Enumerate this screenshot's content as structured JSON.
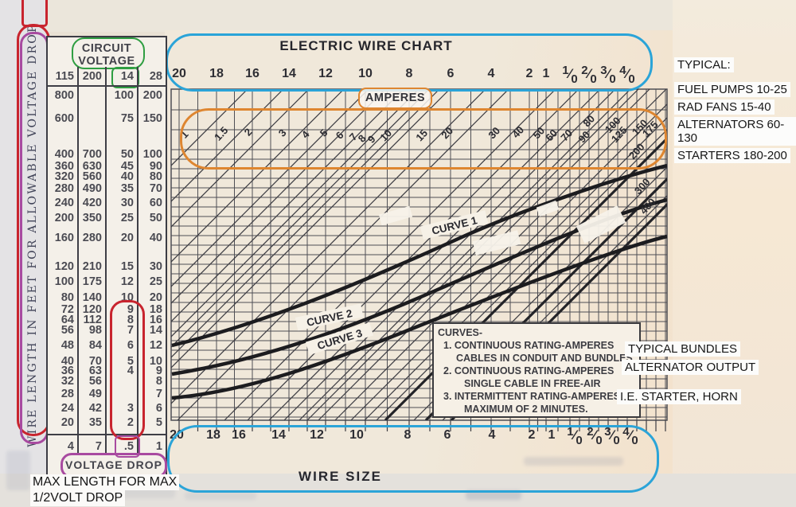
{
  "left_label": {
    "text": "WIRE LENGTH IN FEET FOR ALLOWABLE VOLTAGE DROP"
  },
  "table": {
    "header": "CIRCUIT VOLTAGE",
    "columns": [
      "115",
      "200",
      "14",
      "28"
    ],
    "highlighted_column": "14",
    "rows": [
      [
        "800",
        "",
        "100",
        "200"
      ],
      [
        "600",
        "",
        "75",
        "150"
      ],
      [
        "400",
        "700",
        "50",
        "100"
      ],
      [
        "360",
        "630",
        "45",
        "90"
      ],
      [
        "320",
        "560",
        "40",
        "80"
      ],
      [
        "280",
        "490",
        "35",
        "70"
      ],
      [
        "240",
        "420",
        "30",
        "60"
      ],
      [
        "200",
        "350",
        "25",
        "50"
      ],
      [
        "160",
        "280",
        "20",
        "40"
      ],
      [
        "120",
        "210",
        "15",
        "30"
      ],
      [
        "100",
        "175",
        "12",
        "25"
      ],
      [
        "80",
        "140",
        "10",
        "20"
      ],
      [
        "72",
        "120",
        "9",
        "18"
      ],
      [
        "64",
        "112",
        "8",
        "16"
      ],
      [
        "56",
        "98",
        "7",
        "14"
      ],
      [
        "48",
        "84",
        "6",
        "12"
      ],
      [
        "40",
        "70",
        "5",
        "10"
      ],
      [
        "36",
        "63",
        "4",
        "9"
      ],
      [
        "32",
        "56",
        "",
        "8"
      ],
      [
        "28",
        "49",
        "",
        "7"
      ],
      [
        "24",
        "42",
        "3",
        "6"
      ],
      [
        "20",
        "35",
        "2",
        "5"
      ]
    ],
    "footer": [
      "4",
      "7",
      ".5",
      "1"
    ],
    "footer_label": "VOLTAGE DROP",
    "caption_lines": [
      "MAX LENGTH FOR MAX",
      "1/2VOLT DROP"
    ]
  },
  "chart_data": {
    "type": "nomograph",
    "title": "ELECTRIC WIRE CHART",
    "x_axis": {
      "label": "WIRE SIZE",
      "ticks": [
        "20",
        "18",
        "16",
        "14",
        "12",
        "10",
        "8",
        "6",
        "4",
        "2",
        "1",
        "1/0",
        "2/0",
        "3/0",
        "4/0"
      ],
      "shown_top_and_bottom": true
    },
    "diagonal_axis": {
      "label": "AMPERES",
      "ticks": [
        "1",
        "1.5",
        "2",
        "3",
        "4",
        "5",
        "6",
        "7",
        "8",
        "9",
        "10",
        "15",
        "20",
        "30",
        "40",
        "50",
        "60",
        "70",
        "80",
        "90",
        "100",
        "125",
        "150",
        "175",
        "200",
        "300",
        "400"
      ]
    },
    "curves": [
      {
        "name": "CURVE 1"
      },
      {
        "name": "CURVE 2"
      },
      {
        "name": "CURVE 3"
      }
    ],
    "legend": {
      "title": "CURVES-",
      "lines": [
        "1. CONTINUOUS RATING-AMPERES",
        "CABLES IN CONDUIT AND BUNDLES",
        "2. CONTINUOUS RATING-AMPERES",
        "SINGLE CABLE IN FREE-AIR",
        "3. INTERMITTENT RATING-AMPERES",
        "MAXIMUM OF 2 MINUTES."
      ]
    }
  },
  "annotations": {
    "typical": {
      "title": "TYPICAL:",
      "items": [
        "FUEL PUMPS 10-25",
        "RAD FANS 15-40",
        "ALTERNATORS 60-130",
        "STARTERS 180-200"
      ]
    },
    "side_notes": [
      "TYPICAL BUNDLES",
      "ALTERNATOR OUTPUT",
      "I.E. STARTER, HORN"
    ]
  },
  "colors": {
    "red": "#c8242e",
    "magenta": "#a84aa0",
    "green": "#2f9e42",
    "cyan": "#2ba4d8",
    "orange": "#de8630"
  }
}
